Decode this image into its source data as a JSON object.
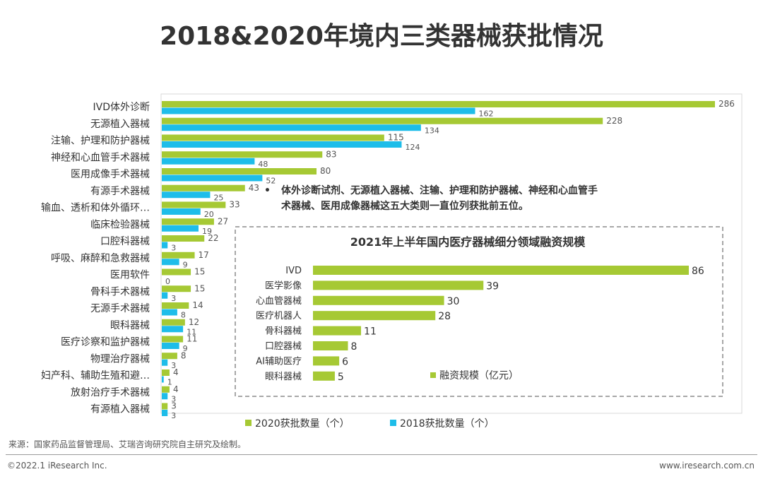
{
  "title": "2018&2020年境内三类器械获批情况",
  "chart_data": [
    {
      "type": "bar",
      "orientation": "horizontal",
      "categories": [
        "IVD体外诊断",
        "无源植入器械",
        "注输、护理和防护器械",
        "神经和心血管手术器械",
        "医用成像手术器械",
        "有源手术器械",
        "输血、透析和体外循环…",
        "临床检验器械",
        "口腔科器械",
        "呼吸、麻醉和急救器械",
        "医用软件",
        "骨科手术器械",
        "无源手术器械",
        "眼科器械",
        "医疗诊察和监护器械",
        "物理治疗器械",
        "妇产科、辅助生殖和避…",
        "放射治疗手术器械",
        "有源植入器械"
      ],
      "series": [
        {
          "name": "2020获批数量（个）",
          "color": "#a6c934",
          "values": [
            286,
            228,
            115,
            83,
            80,
            43,
            33,
            27,
            22,
            17,
            15,
            15,
            14,
            12,
            11,
            8,
            4,
            4,
            3
          ]
        },
        {
          "name": "2018获批数量（个）",
          "color": "#1ebde9",
          "values": [
            162,
            134,
            124,
            48,
            52,
            25,
            20,
            19,
            3,
            9,
            0,
            3,
            8,
            11,
            9,
            3,
            1,
            3,
            3
          ]
        }
      ],
      "xlim": [
        0,
        300
      ],
      "legend": "bottom"
    },
    {
      "type": "bar",
      "orientation": "horizontal",
      "title": "2021年上半年国内医疗器械细分领域融资规模",
      "categories": [
        "IVD",
        "医学影像",
        "心血管器械",
        "医疗机器人",
        "骨科器械",
        "口腔器械",
        "AI辅助医疗",
        "眼科器械"
      ],
      "series": [
        {
          "name": "融资规模（亿元）",
          "color": "#a6c934",
          "values": [
            86,
            39,
            30,
            28,
            11,
            8,
            6,
            5
          ]
        }
      ],
      "xlim": [
        0,
        90
      ],
      "legend": "inside-bottom-right"
    }
  ],
  "annotation": "体外诊断试剂、无源植入器械、注输、护理和防护器械、神经和心血管手术器械、医用成像器械这五大类则一直位列获批前五位。",
  "annotation_bullet": "•",
  "source": "来源：国家药品监督管理局、艾瑞咨询研究院自主研究及绘制。",
  "copyright": "©2022.1 iResearch Inc.",
  "website": "www.iresearch.com.cn"
}
